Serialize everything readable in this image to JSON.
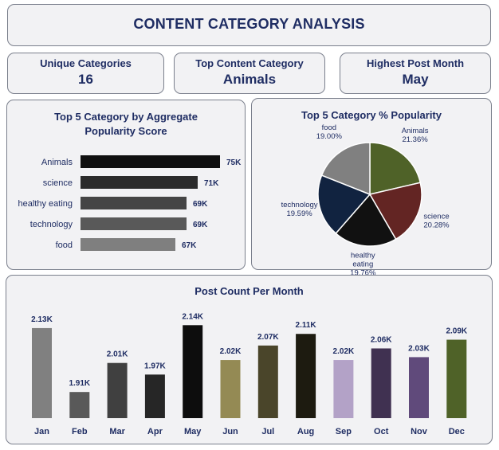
{
  "title": "CONTENT CATEGORY ANALYSIS",
  "kpis": [
    {
      "label": "Unique Categories",
      "value": "16"
    },
    {
      "label": "Top Content Category",
      "value": "Animals"
    },
    {
      "label": "Highest Post Month",
      "value": "May"
    }
  ],
  "chart_data": [
    {
      "type": "bar",
      "orientation": "horizontal",
      "title": "Top 5 Category by Aggregate Popularity Score",
      "categories": [
        "Animals",
        "science",
        "healthy eating",
        "technology",
        "food"
      ],
      "values": [
        75,
        71,
        69,
        69,
        67
      ],
      "value_labels": [
        "75K",
        "71K",
        "69K",
        "69K",
        "67K"
      ],
      "colors": [
        "#101010",
        "#2b2b2b",
        "#454545",
        "#595959",
        "#7f7f7f"
      ],
      "xlim": [
        50,
        80
      ],
      "grid": false,
      "legend": "none"
    },
    {
      "type": "pie",
      "title": "Top 5 Category % Popularity",
      "slices": [
        {
          "label": "Animals",
          "value": 21.36,
          "display": "21.36%",
          "color": "#4f6228"
        },
        {
          "label": "science",
          "value": 20.28,
          "display": "20.28%",
          "color": "#632523"
        },
        {
          "label": "healthy eating",
          "value": 19.76,
          "display": "19.76%",
          "color": "#111111"
        },
        {
          "label": "technology",
          "value": 19.59,
          "display": "19.59%",
          "color": "#112340"
        },
        {
          "label": "food",
          "value": 19.0,
          "display": "19.00%",
          "color": "#808080"
        }
      ],
      "legend": "none"
    },
    {
      "type": "bar",
      "orientation": "vertical",
      "title": "Post Count Per Month",
      "categories": [
        "Jan",
        "Feb",
        "Mar",
        "Apr",
        "May",
        "Jun",
        "Jul",
        "Aug",
        "Sep",
        "Oct",
        "Nov",
        "Dec"
      ],
      "values": [
        2130,
        1910,
        2010,
        1970,
        2140,
        2020,
        2070,
        2110,
        2020,
        2060,
        2030,
        2090
      ],
      "value_labels": [
        "2.13K",
        "1.91K",
        "2.01K",
        "1.97K",
        "2.14K",
        "2.02K",
        "2.07K",
        "2.11K",
        "2.02K",
        "2.06K",
        "2.03K",
        "2.09K"
      ],
      "colors": [
        "#808080",
        "#595959",
        "#404040",
        "#262626",
        "#0d0d0d",
        "#948a54",
        "#4a452a",
        "#1d1b10",
        "#b3a2c7",
        "#403151",
        "#604a7b",
        "#4f6228"
      ],
      "ylim": [
        1820,
        2160
      ],
      "grid": false,
      "legend": "none"
    }
  ]
}
